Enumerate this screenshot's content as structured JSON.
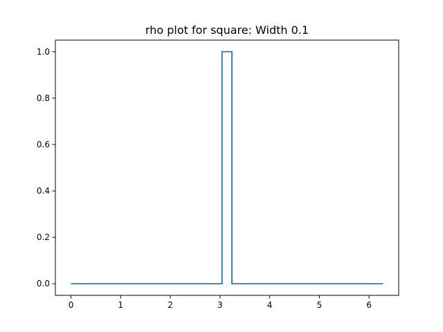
{
  "chart_data": {
    "type": "line",
    "title": "rho plot for square: Width 0.1",
    "xlabel": "",
    "ylabel": "",
    "xlim": [
      -0.314,
      6.597
    ],
    "ylim": [
      -0.05,
      1.05
    ],
    "x_ticks": [
      0,
      1,
      2,
      3,
      4,
      5,
      6
    ],
    "x_tick_labels": [
      "0",
      "1",
      "2",
      "3",
      "4",
      "5",
      "6"
    ],
    "y_ticks": [
      0.0,
      0.2,
      0.4,
      0.6,
      0.8,
      1.0
    ],
    "y_tick_labels": [
      "0.0",
      "0.2",
      "0.4",
      "0.6",
      "0.8",
      "1.0"
    ],
    "grid": false,
    "series": [
      {
        "color": "#1f77b4",
        "points": [
          [
            0.0,
            0.0
          ],
          [
            3.04,
            0.0
          ],
          [
            3.04,
            1.0
          ],
          [
            3.24,
            1.0
          ],
          [
            3.24,
            0.0
          ],
          [
            6.283,
            0.0
          ]
        ]
      }
    ]
  }
}
